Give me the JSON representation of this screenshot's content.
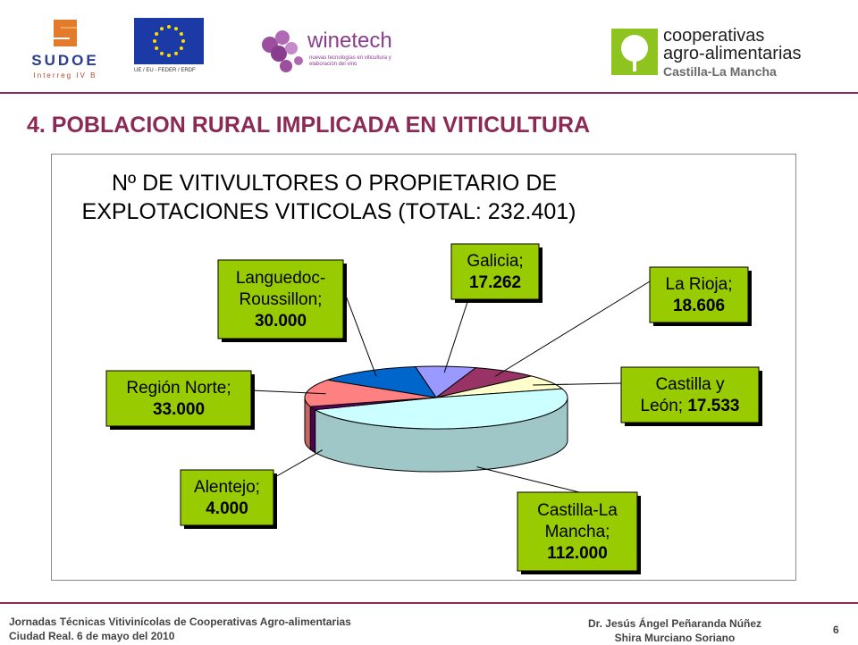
{
  "logos": {
    "sudoe": {
      "word": "SUDOE",
      "sub": "Interreg IV B"
    },
    "eu": {
      "caption": "UE / EU - FEDER / ERDF"
    },
    "winetech": {
      "word": "winetech",
      "sub": "nuevas tecnologías en viticultura y elaboración del vino"
    },
    "coop": {
      "line1": "cooperativas",
      "line2": "agro-alimentarias",
      "line3": "Castilla-La Mancha"
    }
  },
  "heading": "4. POBLACION RURAL IMPLICADA EN VITICULTURA",
  "chart_data": {
    "type": "pie",
    "title_lines": [
      "Nº DE VITIVULTORES O PROPIETARIO DE",
      "EXPLOTACIONES VITICOLAS (TOTAL: 232.401)"
    ],
    "slices": [
      {
        "name": "Galicia",
        "value": 17262,
        "value_label": "17.262",
        "label_lines": [
          "Galicia;"
        ],
        "color": "#9999ff"
      },
      {
        "name": "La Rioja",
        "value": 18606,
        "value_label": "18.606",
        "label_lines": [
          "La Rioja;"
        ],
        "color": "#993366"
      },
      {
        "name": "Castilla y León",
        "value": 17533,
        "value_label": "17.533",
        "label_lines": [
          "Castilla y",
          "León;"
        ],
        "color": "#ffffcc"
      },
      {
        "name": "Castilla-La Mancha",
        "value": 112000,
        "value_label": "112.000",
        "label_lines": [
          "Castilla-La",
          "Mancha;"
        ],
        "color": "#ccffff"
      },
      {
        "name": "Alentejo",
        "value": 4000,
        "value_label": "4.000",
        "label_lines": [
          "Alentejo;"
        ],
        "color": "#660066"
      },
      {
        "name": "Región Norte",
        "value": 33000,
        "value_label": "33.000",
        "label_lines": [
          "Región Norte;"
        ],
        "color": "#ff8080"
      },
      {
        "name": "Languedoc-Roussillon",
        "value": 30000,
        "value_label": "30.000",
        "label_lines": [
          "Languedoc-",
          "Roussillon;"
        ],
        "color": "#0066cc"
      }
    ],
    "label_box_color": "#99cc00",
    "legend": "none"
  },
  "footer": {
    "left_line1": "Jornadas Técnicas Vitivinícolas de Cooperativas Agro-alimentarias",
    "left_line2": "Ciudad Real. 6 de mayo del 2010",
    "right_line1": "Dr. Jesús Ángel Peñaranda Núñez",
    "right_line2": "Shira Murciano Soriano",
    "page": "6"
  }
}
